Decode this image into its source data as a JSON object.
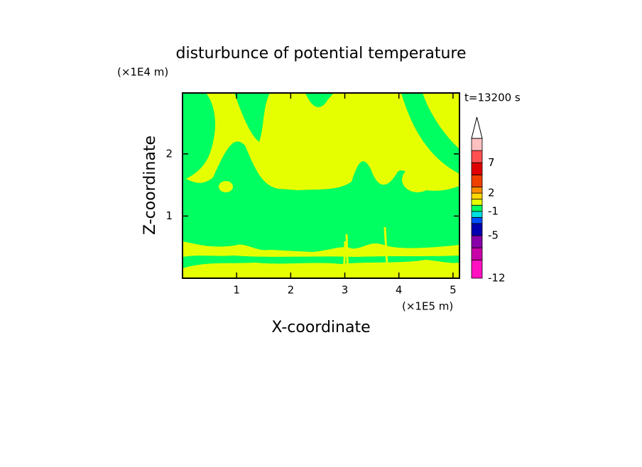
{
  "chart_data": {
    "type": "contour",
    "title": "disturbunce of potential temperature",
    "x_label": "X-coordinate",
    "y_label": "Z-coordinate",
    "x_unit": "(×1E5 m)",
    "y_unit": "(×1E4 m)",
    "time_label": "t=13200 s",
    "xlim": [
      0,
      5.12
    ],
    "ylim": [
      0,
      2.98
    ],
    "xticks": [
      1,
      2,
      3,
      4,
      5
    ],
    "yticks": [
      1,
      2
    ],
    "colorbar": {
      "levels": [
        -12,
        -9,
        -7,
        -5,
        -3,
        -2,
        -1,
        0,
        1,
        2,
        3,
        5,
        7,
        9,
        11
      ],
      "colors": [
        "#ff10c0",
        "#c800a8",
        "#8800a8",
        "#0000b0",
        "#0050ff",
        "#00e0e0",
        "#00ff60",
        "#e6ff00",
        "#ffd800",
        "#ff8c00",
        "#f04000",
        "#e00000",
        "#ff5050",
        "#ffc0c0"
      ],
      "extend_color": "#ffffff",
      "ticks": [
        -12,
        -5,
        -1,
        2,
        7
      ]
    }
  }
}
